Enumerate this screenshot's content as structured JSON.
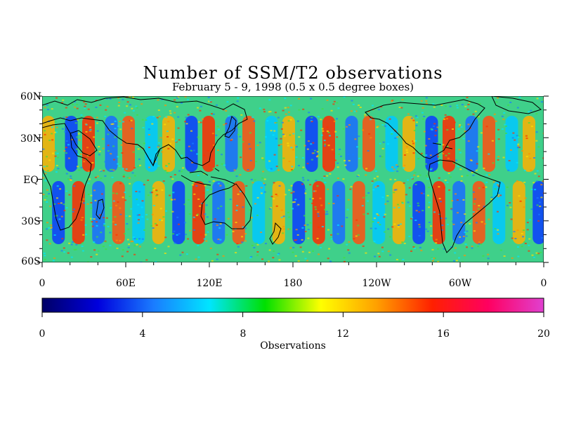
{
  "title": "Number of SSM/T2 observations",
  "subtitle": "February 5 - 9, 1998 (0.5 x 0.5 degree boxes)",
  "map": {
    "lat_ticks": [
      "60N",
      "30N",
      "EQ",
      "30S",
      "60S"
    ],
    "lon_ticks": [
      "0",
      "60E",
      "120E",
      "180",
      "120W",
      "60W",
      "0"
    ],
    "lat_range": [
      -60,
      60
    ],
    "lon_range": [
      0,
      360
    ]
  },
  "colorbar": {
    "label": "Observations",
    "ticks": [
      "0",
      "4",
      "8",
      "12",
      "16",
      "20"
    ],
    "range": [
      0,
      20
    ],
    "colors": [
      "#000066",
      "#0000dd",
      "#1a7cff",
      "#00e5ff",
      "#00e000",
      "#ffff00",
      "#ffa000",
      "#ff2000",
      "#ff0060",
      "#e040d0"
    ]
  },
  "colors": {
    "background": "#ffffff",
    "coastline": "#000000"
  }
}
